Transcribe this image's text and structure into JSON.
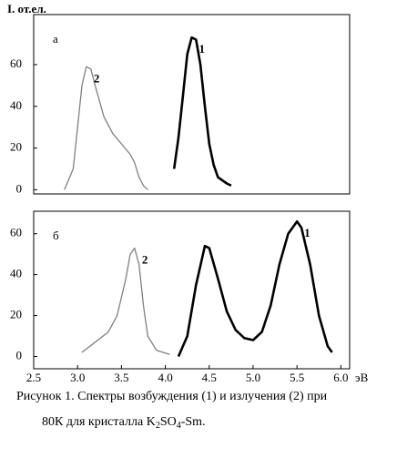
{
  "chart_data": [
    {
      "type": "line",
      "y_label": "I. от.ел.",
      "panel_label": "а",
      "xlim": [
        2.5,
        6.1
      ],
      "ylim": [
        -2,
        84
      ],
      "yticks": [
        0,
        20,
        40,
        60
      ],
      "series": [
        {
          "name": "1",
          "color": "#000000",
          "x": [
            4.1,
            4.15,
            4.2,
            4.25,
            4.3,
            4.35,
            4.4,
            4.45,
            4.5,
            4.55,
            4.6,
            4.7,
            4.75
          ],
          "values": [
            10,
            25,
            45,
            65,
            73,
            72,
            60,
            40,
            22,
            12,
            6,
            3,
            2
          ]
        },
        {
          "name": "2",
          "color": "#808080",
          "x": [
            2.85,
            2.95,
            3.0,
            3.05,
            3.1,
            3.15,
            3.2,
            3.3,
            3.4,
            3.5,
            3.6,
            3.65,
            3.7,
            3.75,
            3.8
          ],
          "values": [
            0,
            10,
            30,
            50,
            59,
            58,
            50,
            35,
            27,
            22,
            17,
            13,
            6,
            2,
            0
          ]
        }
      ]
    },
    {
      "type": "line",
      "panel_label": "б",
      "x_label": "эВ",
      "xlim": [
        2.5,
        6.1
      ],
      "ylim": [
        -6,
        71
      ],
      "yticks": [
        0,
        20,
        40,
        60
      ],
      "xticks": [
        2.5,
        3.0,
        3.5,
        4.0,
        4.5,
        5.0,
        5.5,
        6.0
      ],
      "series": [
        {
          "name": "1",
          "color": "#000000",
          "x": [
            4.15,
            4.25,
            4.35,
            4.45,
            4.5,
            4.6,
            4.7,
            4.8,
            4.9,
            5.0,
            5.1,
            5.2,
            5.3,
            5.4,
            5.5,
            5.55,
            5.65,
            5.75,
            5.85,
            5.9
          ],
          "values": [
            0,
            10,
            35,
            54,
            53,
            38,
            22,
            13,
            9,
            8,
            12,
            25,
            45,
            60,
            66,
            63,
            45,
            20,
            5,
            2
          ]
        },
        {
          "name": "2",
          "color": "#808080",
          "x": [
            3.05,
            3.2,
            3.35,
            3.45,
            3.55,
            3.6,
            3.65,
            3.7,
            3.75,
            3.8,
            3.9,
            4.05
          ],
          "values": [
            2,
            7,
            12,
            20,
            38,
            50,
            53,
            45,
            25,
            10,
            3,
            1
          ]
        }
      ]
    }
  ],
  "caption": {
    "line1": "Рисунок 1. Спектры возбуждения (1) и излучения (2)   при",
    "line2": [
      "80К для кристалла K",
      "2",
      "SO",
      "4",
      "-Sm."
    ]
  }
}
